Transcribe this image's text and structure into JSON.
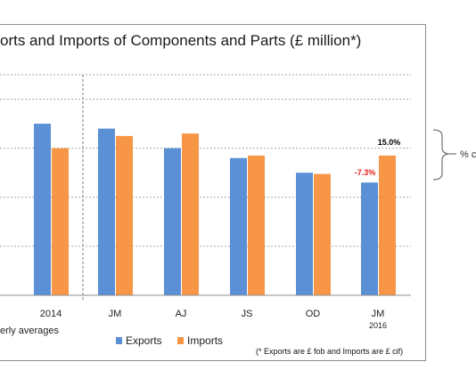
{
  "chart_data": {
    "type": "bar",
    "title": "orts and Imports of Components and Parts (£ million*)",
    "categories": [
      "2014",
      "JM",
      "AJ",
      "JS",
      "OD",
      "JM"
    ],
    "sub_labels": [
      "",
      "",
      "",
      "",
      "",
      "2016"
    ],
    "series": [
      {
        "name": "Exports",
        "color": "#5b8fd6",
        "values": [
          7.0,
          6.8,
          6.0,
          5.6,
          5.0,
          4.6
        ]
      },
      {
        "name": "Imports",
        "color": "#f79646",
        "values": [
          6.0,
          6.5,
          6.6,
          5.7,
          4.95,
          5.7
        ]
      }
    ],
    "ylim": [
      0,
      9
    ],
    "grid": true,
    "legend": "bottom",
    "annotations": [
      {
        "text": "15.0%",
        "color": "#000000",
        "category_index": 5,
        "series_index": 1
      },
      {
        "text": "-7.3%",
        "color": "#e0201b",
        "category_index": 5,
        "series_index": 0
      }
    ],
    "side_label": "% c",
    "x_group_note": "erly averages",
    "footnote": "(* Exports are £ fob and Imports are £ cif)"
  }
}
